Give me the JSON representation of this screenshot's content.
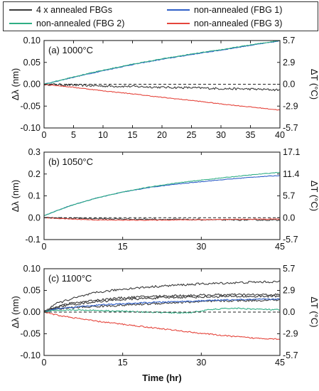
{
  "legend": {
    "items": [
      {
        "label": "4 x annealed FBGs",
        "color": "#3a3a3a"
      },
      {
        "label": "non-annealed (FBG 1)",
        "color": "#2f5fc8"
      },
      {
        "label": "non-annealed (FBG 2)",
        "color": "#2fae84"
      },
      {
        "label": "non-annealed (FBG 3)",
        "color": "#e5453c"
      }
    ]
  },
  "shared_axes": {
    "xlabel": "Time (hr)",
    "ylabel": "Δλ (nm)",
    "y2label": "ΔT (°C)"
  },
  "chart_data": [
    {
      "type": "line",
      "title": "(a) 1000°C",
      "xlim": [
        0,
        40
      ],
      "ylim": [
        -0.1,
        0.1
      ],
      "xticks": [
        "0",
        "5",
        "10",
        "15",
        "20",
        "25",
        "30",
        "35",
        "40"
      ],
      "yticks": [
        "-0.10",
        "-0.05",
        "0.00",
        "0.05",
        "0.10"
      ],
      "y2ticks": [
        "-5.7",
        "-2.9",
        "0.0",
        "2.9",
        "5.7"
      ],
      "reference_line": 0,
      "series": [
        {
          "name": "4 x annealed FBGs",
          "color": "#3a3a3a",
          "noise": 0.0025,
          "x": [
            0,
            5,
            10,
            15,
            20,
            25,
            30,
            35,
            40
          ],
          "y": [
            0,
            -0.002,
            -0.004,
            -0.005,
            -0.007,
            -0.008,
            -0.01,
            -0.011,
            -0.013
          ]
        },
        {
          "name": "non-annealed (FBG 1)",
          "color": "#2f5fc8",
          "noise": 0.0008,
          "x": [
            0,
            5,
            10,
            15,
            20,
            25,
            30,
            35,
            40
          ],
          "y": [
            0,
            0.016,
            0.031,
            0.045,
            0.057,
            0.068,
            0.078,
            0.089,
            0.099
          ]
        },
        {
          "name": "non-annealed (FBG 2)",
          "color": "#2fae84",
          "noise": 0.0008,
          "x": [
            0,
            5,
            10,
            15,
            20,
            25,
            30,
            35,
            40
          ],
          "y": [
            0,
            0.017,
            0.032,
            0.046,
            0.058,
            0.069,
            0.079,
            0.09,
            0.1
          ]
        },
        {
          "name": "non-annealed (FBG 3)",
          "color": "#e5453c",
          "noise": 0.0008,
          "x": [
            0,
            5,
            10,
            15,
            20,
            25,
            30,
            35,
            40
          ],
          "y": [
            0,
            -0.007,
            -0.015,
            -0.022,
            -0.03,
            -0.037,
            -0.045,
            -0.052,
            -0.059
          ]
        }
      ]
    },
    {
      "type": "line",
      "title": "(b) 1050°C",
      "xlim": [
        0,
        45
      ],
      "ylim": [
        -0.1,
        0.3
      ],
      "xticks": [
        "0",
        "15",
        "30",
        "45"
      ],
      "yticks": [
        "-0.1",
        "0.0",
        "0.1",
        "0.2",
        "0.3"
      ],
      "y2ticks": [
        "-5.7",
        "0.0",
        "5.7",
        "11.4",
        "17.1"
      ],
      "reference_line": 0,
      "series": [
        {
          "name": "4 x annealed FBGs",
          "color": "#3a3a3a",
          "noise": 0.003,
          "x": [
            0,
            5,
            10,
            15,
            20,
            25,
            30,
            35,
            40,
            45
          ],
          "y": [
            0,
            -0.002,
            -0.004,
            -0.006,
            -0.007,
            -0.008,
            -0.009,
            -0.01,
            -0.01,
            -0.011
          ]
        },
        {
          "name": "non-annealed (FBG 1)",
          "color": "#2f5fc8",
          "noise": 0.0012,
          "x": [
            0,
            5,
            10,
            15,
            20,
            25,
            30,
            35,
            40,
            45
          ],
          "y": [
            0.01,
            0.055,
            0.09,
            0.117,
            0.138,
            0.153,
            0.165,
            0.176,
            0.186,
            0.193
          ]
        },
        {
          "name": "non-annealed (FBG 2)",
          "color": "#2fae84",
          "noise": 0.0012,
          "x": [
            0,
            5,
            10,
            15,
            20,
            25,
            30,
            35,
            40,
            45
          ],
          "y": [
            0.01,
            0.055,
            0.09,
            0.118,
            0.14,
            0.158,
            0.172,
            0.185,
            0.197,
            0.208
          ]
        },
        {
          "name": "non-annealed (FBG 3)",
          "color": "#e5453c",
          "noise": 0.0015,
          "x": [
            0,
            5,
            10,
            15,
            20,
            25,
            30,
            35,
            40,
            45
          ],
          "y": [
            0,
            -0.006,
            -0.01,
            -0.011,
            -0.011,
            -0.01,
            -0.009,
            -0.008,
            -0.007,
            -0.006
          ]
        }
      ]
    },
    {
      "type": "line",
      "title": "(c) 1100°C",
      "xlim": [
        0,
        45
      ],
      "ylim": [
        -0.1,
        0.1
      ],
      "xticks": [
        "0",
        "15",
        "30",
        "45"
      ],
      "yticks": [
        "-0.10",
        "-0.05",
        "0.00",
        "0.05",
        "0.10"
      ],
      "y2ticks": [
        "-5.7",
        "-2.9",
        "0.0",
        "2.9",
        "5.7"
      ],
      "reference_line": 0,
      "series": [
        {
          "name": "4 x annealed FBGs",
          "color": "#3a3a3a",
          "noise": 0.0025,
          "x": [
            0,
            2,
            5,
            10,
            15,
            20,
            25,
            30,
            35,
            40,
            45
          ],
          "y": [
            0,
            0.018,
            0.03,
            0.045,
            0.053,
            0.058,
            0.062,
            0.065,
            0.067,
            0.069,
            0.07
          ]
        },
        {
          "name": "4 x annealed FBGs",
          "color": "#3a3a3a",
          "noise": 0.0025,
          "x": [
            0,
            2,
            5,
            10,
            15,
            20,
            25,
            30,
            35,
            40,
            45
          ],
          "y": [
            0,
            0.012,
            0.02,
            0.028,
            0.033,
            0.036,
            0.038,
            0.039,
            0.04,
            0.04,
            0.04
          ]
        },
        {
          "name": "4 x annealed FBGs",
          "color": "#3a3a3a",
          "noise": 0.0025,
          "x": [
            0,
            2,
            5,
            10,
            15,
            20,
            25,
            30,
            35,
            40,
            45
          ],
          "y": [
            0,
            0.01,
            0.017,
            0.024,
            0.029,
            0.032,
            0.034,
            0.035,
            0.036,
            0.036,
            0.037
          ]
        },
        {
          "name": "4 x annealed FBGs",
          "color": "#3a3a3a",
          "noise": 0.0025,
          "x": [
            0,
            2,
            5,
            10,
            15,
            20,
            25,
            30,
            35,
            40,
            45
          ],
          "y": [
            0,
            0.006,
            0.01,
            0.013,
            0.016,
            0.019,
            0.022,
            0.024,
            0.026,
            0.027,
            0.028
          ]
        },
        {
          "name": "non-annealed (FBG 1)",
          "color": "#2f5fc8",
          "noise": 0.0015,
          "x": [
            0,
            2,
            5,
            10,
            15,
            20,
            25,
            30,
            35,
            40,
            45
          ],
          "y": [
            0,
            0.007,
            0.011,
            0.016,
            0.019,
            0.022,
            0.024,
            0.026,
            0.028,
            0.029,
            0.03
          ]
        },
        {
          "name": "non-annealed (FBG 2)",
          "color": "#2fae84",
          "noise": 0.0015,
          "x": [
            0,
            2,
            5,
            10,
            15,
            20,
            25,
            28,
            32,
            36,
            40,
            45
          ],
          "y": [
            0,
            0.004,
            0.005,
            0.004,
            0.002,
            0.0,
            -0.002,
            -0.001,
            0.006,
            0.009,
            0.007,
            0.005
          ]
        },
        {
          "name": "non-annealed (FBG 3)",
          "color": "#e5453c",
          "noise": 0.0015,
          "x": [
            0,
            2,
            5,
            10,
            15,
            20,
            25,
            30,
            35,
            40,
            45
          ],
          "y": [
            0,
            -0.006,
            -0.012,
            -0.021,
            -0.028,
            -0.035,
            -0.042,
            -0.049,
            -0.055,
            -0.06,
            -0.062
          ]
        }
      ]
    }
  ]
}
